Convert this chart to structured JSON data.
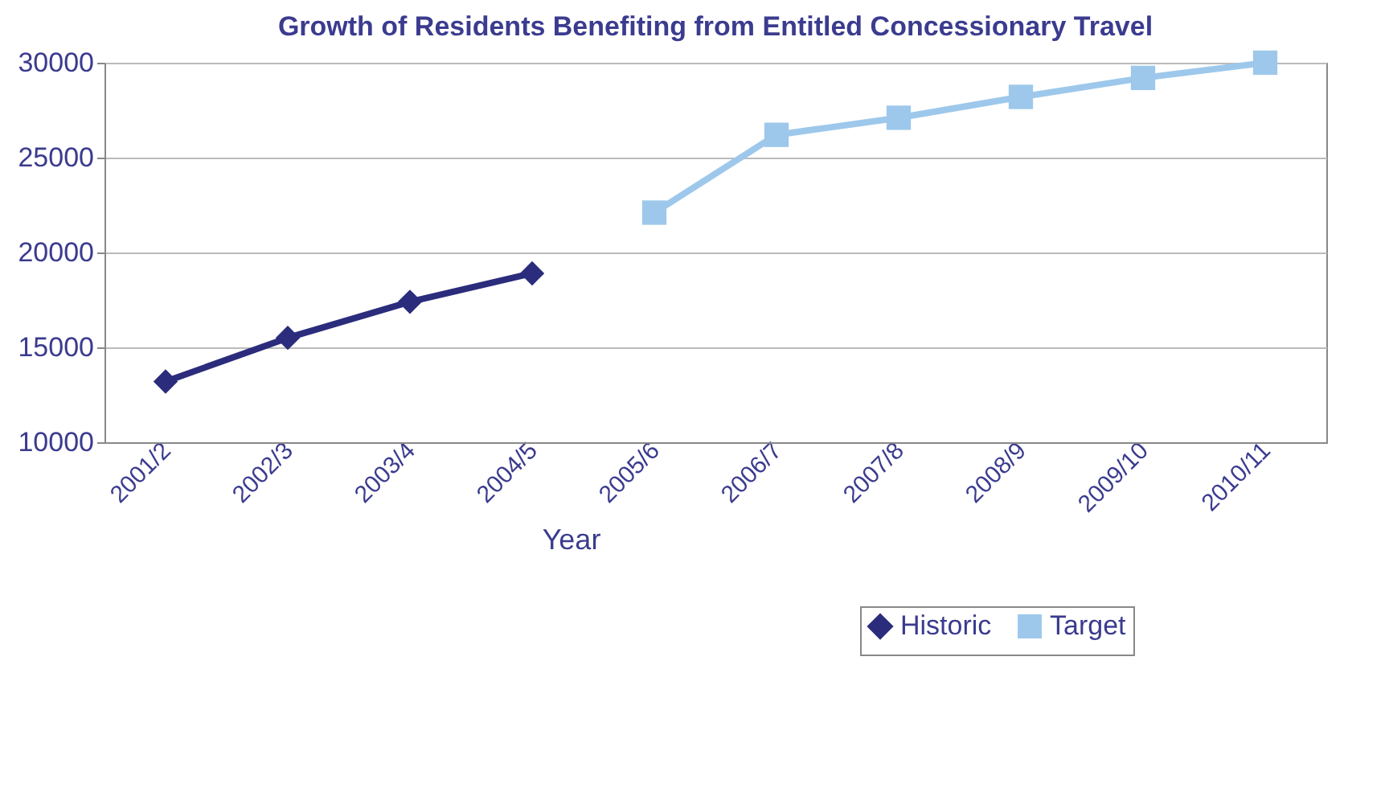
{
  "chart_data": {
    "type": "line",
    "title": "Growth of Residents Benefiting from Entitled Concessionary Travel",
    "xlabel": "Year",
    "categories": [
      "2001/2",
      "2002/3",
      "2003/4",
      "2004/5",
      "2005/6",
      "2006/7",
      "2007/8",
      "2008/9",
      "2009/10",
      "2010/11"
    ],
    "series": [
      {
        "name": "Historic",
        "color": "#2b2c7c",
        "marker": "diamond",
        "values": [
          13200,
          15500,
          17400,
          18900,
          null,
          null,
          null,
          null,
          null,
          null
        ]
      },
      {
        "name": "Target",
        "color": "#9dc8eb",
        "marker": "square",
        "values": [
          null,
          null,
          null,
          null,
          22100,
          26200,
          27100,
          28200,
          29200,
          30000
        ]
      }
    ],
    "ylim": [
      10000,
      30000
    ],
    "yticks": [
      10000,
      15000,
      20000,
      25000,
      30000
    ],
    "grid": "y",
    "legend": "bottom right",
    "line_style": "solid"
  }
}
